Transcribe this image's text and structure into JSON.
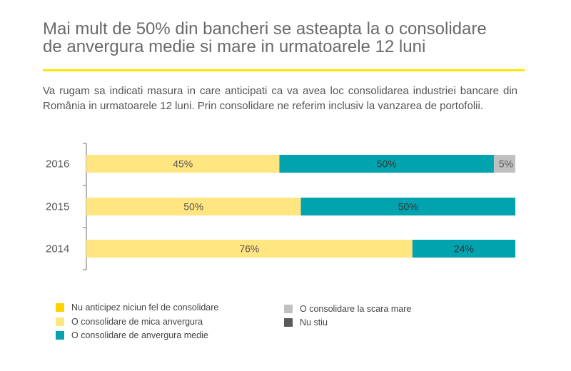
{
  "title_lines": [
    "Mai mult de 50% din bancheri se asteapta la o consolidare",
    "de anvergura medie si mare in urmatoarele 12 luni"
  ],
  "question": "Va rugam sa indicati masura in care anticipati ca va avea loc consolidarea industriei bancare din România in urmatoarele 12 luni. Prin consolidare ne referim inclusiv la vanzarea de portofolii.",
  "chart_data": {
    "type": "bar",
    "orientation": "horizontal",
    "stacked": true,
    "categories": [
      "2016",
      "2015",
      "2014"
    ],
    "xlim": [
      0,
      100
    ],
    "series": [
      {
        "name": "Nu anticipez niciun fel de consolidare",
        "color": "#ffd200",
        "values": [
          0,
          0,
          0
        ],
        "labels": [
          "",
          "",
          ""
        ]
      },
      {
        "name": "O consolidare de mica anvergura",
        "color": "#ffe681",
        "values": [
          45,
          50,
          76
        ],
        "labels": [
          "45%",
          "50%",
          "76%"
        ]
      },
      {
        "name": "O consolidare de anvergura medie",
        "color": "#00a3ae",
        "values": [
          50,
          50,
          24
        ],
        "labels": [
          "50%",
          "50%",
          "24%"
        ]
      },
      {
        "name": "O consolidare la scara mare",
        "color": "#c0c0c0",
        "values": [
          5,
          0,
          0
        ],
        "labels": [
          "5%",
          "",
          ""
        ]
      },
      {
        "name": "Nu stiu",
        "color": "#595959",
        "values": [
          0,
          0,
          0
        ],
        "labels": [
          "",
          "",
          ""
        ]
      }
    ],
    "legend_position": "bottom",
    "grid": false
  }
}
